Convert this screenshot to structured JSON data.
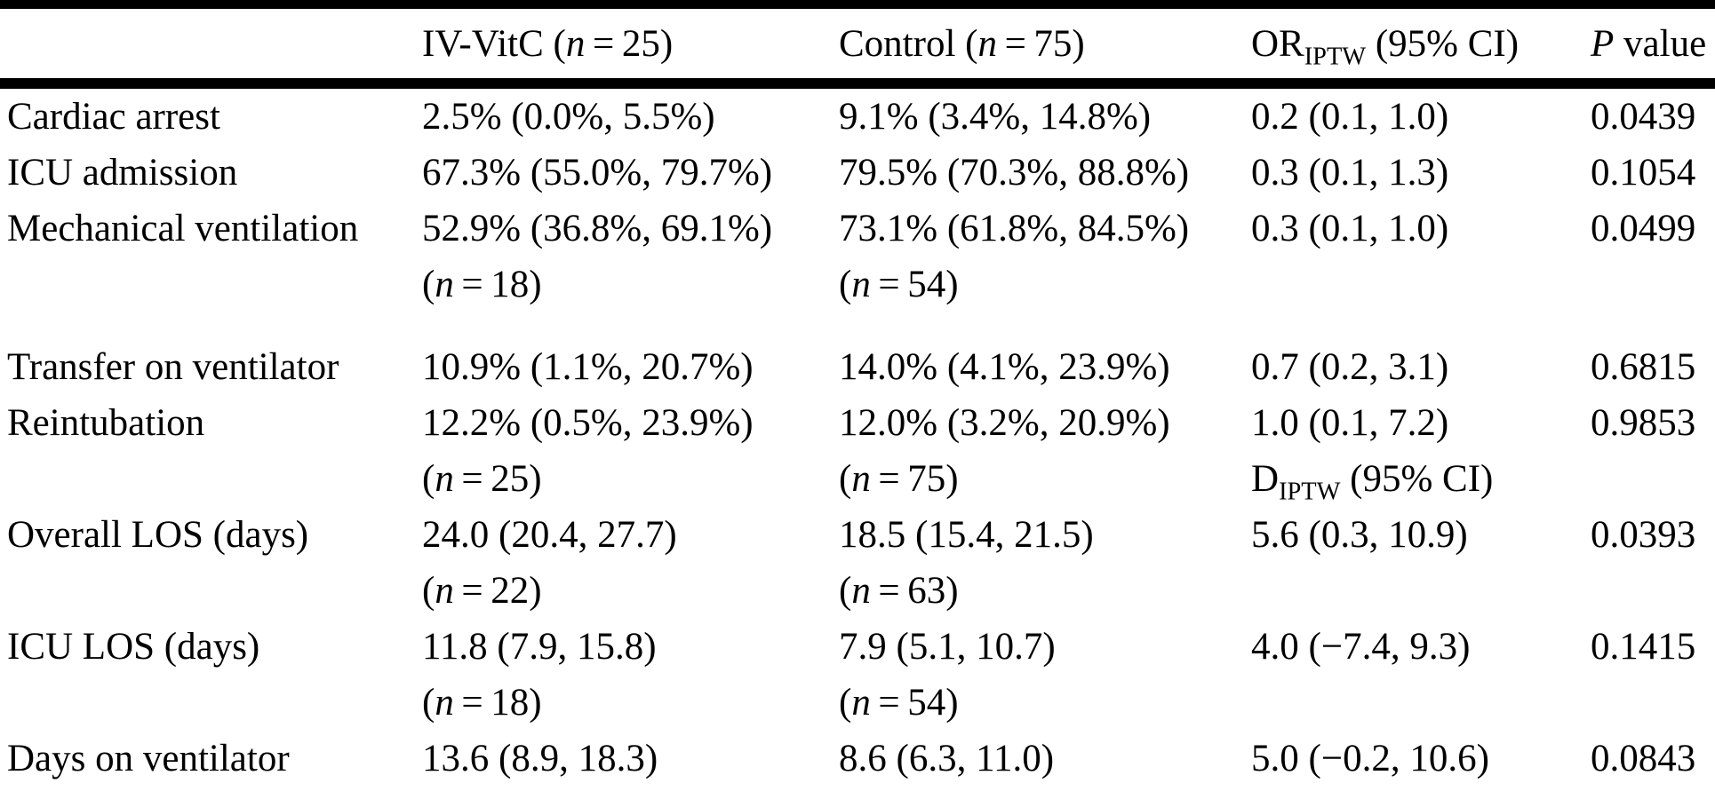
{
  "page": {
    "background": "#ffffff",
    "text_color": "#000000",
    "rule_color": "#000000"
  },
  "table": {
    "columns": [
      {
        "key": "label",
        "header": ""
      },
      {
        "key": "ivvitc",
        "header": "IV-VitC (*n* = 25)"
      },
      {
        "key": "control",
        "header": "Control (*n* = 75)"
      },
      {
        "key": "or",
        "header": "OR~IPTW~ (95% CI)"
      },
      {
        "key": "p",
        "header": "*P* value"
      }
    ],
    "rows": [
      {
        "label": [
          "Cardiac arrest"
        ],
        "ivvitc": [
          "2.5% (0.0%, 5.5%)"
        ],
        "control": [
          "9.1% (3.4%, 14.8%)"
        ],
        "or": [
          "0.2 (0.1, 1.0)"
        ],
        "p": [
          "0.0439"
        ],
        "extra_gap": false
      },
      {
        "label": [
          "ICU admission"
        ],
        "ivvitc": [
          "67.3% (55.0%, 79.7%)"
        ],
        "control": [
          "79.5% (70.3%, 88.8%)"
        ],
        "or": [
          "0.3 (0.1, 1.3)"
        ],
        "p": [
          "0.1054"
        ],
        "extra_gap": false
      },
      {
        "label": [
          "Mechanical ventilation"
        ],
        "ivvitc": [
          "52.9% (36.8%, 69.1%)",
          "(*n* = 18)"
        ],
        "control": [
          "73.1% (61.8%, 84.5%)",
          "(*n* = 54)"
        ],
        "or": [
          "0.3 (0.1, 1.0)"
        ],
        "p": [
          "0.0499"
        ],
        "extra_gap": true
      },
      {
        "label": [
          "Transfer on ventilator"
        ],
        "ivvitc": [
          "10.9% (1.1%, 20.7%)"
        ],
        "control": [
          "14.0% (4.1%, 23.9%)"
        ],
        "or": [
          "0.7 (0.2, 3.1)"
        ],
        "p": [
          "0.6815"
        ],
        "extra_gap": false
      },
      {
        "label": [
          "Reintubation"
        ],
        "ivvitc": [
          "12.2% (0.5%, 23.9%)",
          "(*n* = 25)"
        ],
        "control": [
          "12.0% (3.2%, 20.9%)",
          "(*n* = 75)"
        ],
        "or": [
          "1.0 (0.1, 7.2)",
          "D~IPTW~ (95% CI)"
        ],
        "p": [
          "0.9853"
        ],
        "extra_gap": false
      },
      {
        "label": [
          "Overall LOS (days)"
        ],
        "ivvitc": [
          "24.0 (20.4, 27.7)",
          "(*n* = 22)"
        ],
        "control": [
          "18.5 (15.4, 21.5)",
          "(*n* = 63)"
        ],
        "or": [
          "5.6 (0.3, 10.9)"
        ],
        "p": [
          "0.0393"
        ],
        "extra_gap": false
      },
      {
        "label": [
          "ICU LOS (days)"
        ],
        "ivvitc": [
          "11.8 (7.9, 15.8)",
          "(*n* = 18)"
        ],
        "control": [
          "7.9 (5.1, 10.7)",
          "(*n* = 54)"
        ],
        "or": [
          "4.0 (−7.4, 9.3)"
        ],
        "p": [
          "0.1415"
        ],
        "extra_gap": false
      },
      {
        "label": [
          "Days on ventilator"
        ],
        "ivvitc": [
          "13.6 (8.9, 18.3)"
        ],
        "control": [
          "8.6 (6.3, 11.0)"
        ],
        "or": [
          "5.0 (−0.2, 10.6)"
        ],
        "p": [
          "0.0843"
        ],
        "extra_gap": false
      }
    ]
  }
}
